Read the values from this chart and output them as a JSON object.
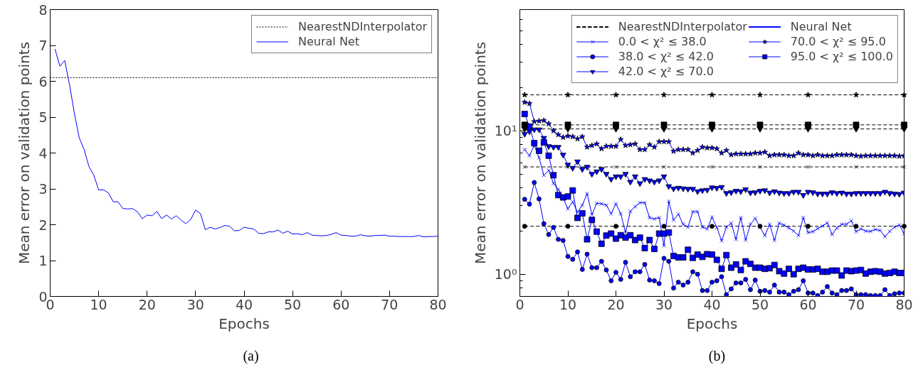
{
  "chart_data": [
    {
      "type": "line",
      "xlabel": "Epochs",
      "ylabel": "Mean error on validation points",
      "annotations": [
        "(a)"
      ],
      "x": [
        1,
        2,
        3,
        4,
        5,
        6,
        7,
        8,
        9,
        10,
        11,
        12,
        13,
        14,
        15,
        16,
        17,
        18,
        19,
        20,
        21,
        22,
        23,
        24,
        25,
        26,
        27,
        28,
        29,
        30,
        31,
        32,
        33,
        34,
        35,
        36,
        37,
        38,
        39,
        40,
        41,
        42,
        43,
        44,
        45,
        46,
        47,
        48,
        49,
        50,
        51,
        52,
        53,
        54,
        55,
        56,
        57,
        58,
        59,
        60,
        61,
        62,
        63,
        64,
        65,
        66,
        67,
        68,
        69,
        70,
        71,
        72,
        73,
        74,
        75,
        76,
        77,
        78,
        79,
        80
      ],
      "series": [
        {
          "name": "Neural Net",
          "color": "#0000ff",
          "line_style": "solid",
          "marker": "none",
          "values": [
            6.9,
            6.42,
            6.58,
            5.9,
            5.1,
            4.42,
            4.1,
            3.62,
            3.38,
            2.97,
            2.97,
            2.89,
            2.64,
            2.64,
            2.45,
            2.44,
            2.45,
            2.36,
            2.17,
            2.27,
            2.25,
            2.37,
            2.17,
            2.27,
            2.16,
            2.25,
            2.13,
            2.03,
            2.15,
            2.41,
            2.31,
            1.86,
            1.93,
            1.88,
            1.92,
            1.98,
            1.96,
            1.83,
            1.84,
            1.93,
            1.9,
            1.88,
            1.76,
            1.75,
            1.8,
            1.8,
            1.85,
            1.76,
            1.82,
            1.74,
            1.75,
            1.72,
            1.78,
            1.71,
            1.7,
            1.69,
            1.7,
            1.73,
            1.78,
            1.71,
            1.7,
            1.68,
            1.68,
            1.72,
            1.69,
            1.68,
            1.7,
            1.7,
            1.71,
            1.68,
            1.68,
            1.67,
            1.67,
            1.67,
            1.67,
            1.7,
            1.66,
            1.67,
            1.67,
            1.68
          ]
        }
      ],
      "ref_lines": [
        {
          "axis": "y",
          "value": 6.1,
          "label": "NearestNDInterpolator",
          "color": "#000000",
          "line_style": "dotted"
        }
      ],
      "xlim": [
        0,
        80
      ],
      "xticks": [
        0,
        10,
        20,
        30,
        40,
        50,
        60,
        70,
        80
      ],
      "ylim": [
        0,
        8
      ],
      "yticks": [
        0,
        1,
        2,
        3,
        4,
        5,
        6,
        7,
        8
      ],
      "grid": false,
      "legend": "top right"
    },
    {
      "type": "line",
      "xlabel": "Epochs",
      "ylabel": "Mean error on validation points",
      "annotations": [
        "(b)",
        "Neural Net"
      ],
      "log": true,
      "x": [
        1,
        2,
        3,
        4,
        5,
        6,
        7,
        8,
        9,
        10,
        11,
        12,
        13,
        14,
        15,
        16,
        17,
        18,
        19,
        20,
        21,
        22,
        23,
        24,
        25,
        26,
        27,
        28,
        29,
        30,
        31,
        32,
        33,
        34,
        35,
        36,
        37,
        38,
        39,
        40,
        41,
        42,
        43,
        44,
        45,
        46,
        47,
        48,
        49,
        50,
        51,
        52,
        53,
        54,
        55,
        56,
        57,
        58,
        59,
        60,
        61,
        62,
        63,
        64,
        65,
        66,
        67,
        68,
        69,
        70,
        71,
        72,
        73,
        74,
        75,
        76,
        77,
        78,
        79,
        80
      ],
      "series": [
        {
          "name": "NearestNDInterpolator",
          "color": "#000000",
          "line_style": "dashed",
          "marker": "star",
          "x": [
            1,
            10,
            20,
            30,
            40,
            50,
            60,
            70,
            80
          ],
          "values": [
            17.8,
            17.8,
            17.8,
            17.8,
            17.8,
            17.8,
            17.8,
            17.8,
            17.8
          ]
        },
        {
          "name": "NearestNDInterpolator",
          "color": "#000000",
          "line_style": "dashed",
          "marker": "square",
          "x": [
            1,
            10,
            20,
            30,
            40,
            50,
            60,
            70,
            80
          ],
          "values": [
            11.0,
            11.0,
            11.0,
            11.0,
            11.0,
            11.0,
            11.0,
            11.0,
            11.0
          ]
        },
        {
          "name": "NearestNDInterpolator",
          "color": "#000000",
          "line_style": "dashed",
          "marker": "triangle",
          "x": [
            1,
            10,
            20,
            30,
            40,
            50,
            60,
            70,
            80
          ],
          "values": [
            10.3,
            10.3,
            10.3,
            10.3,
            10.3,
            10.3,
            10.3,
            10.3,
            10.3
          ]
        },
        {
          "name": "NearestNDInterpolator",
          "color": "#000000",
          "line_style": "dashed",
          "marker": "cross",
          "x": [
            1,
            10,
            20,
            30,
            40,
            50,
            60,
            70,
            80
          ],
          "values": [
            5.6,
            5.6,
            5.6,
            5.6,
            5.6,
            5.6,
            5.6,
            5.6,
            5.6
          ]
        },
        {
          "name": "NearestNDInterpolator",
          "color": "#000000",
          "line_style": "dashed",
          "marker": "circle",
          "x": [
            1,
            10,
            20,
            30,
            40,
            50,
            60,
            70,
            80
          ],
          "values": [
            2.16,
            2.16,
            2.16,
            2.16,
            2.16,
            2.16,
            2.16,
            2.16,
            2.16
          ]
        },
        {
          "name": "0.0 < χ² ≤ 38.0",
          "color": "#0000ff",
          "line_style": "solid",
          "marker": "cross",
          "values": [
            7.4,
            6.7,
            7.9,
            6.5,
            4.9,
            5.3,
            4.3,
            3.9,
            3.4,
            2.86,
            3.2,
            2.7,
            3.03,
            3.65,
            2.6,
            3.12,
            3.1,
            3.03,
            2.64,
            3.1,
            2.64,
            1.95,
            2.74,
            2.96,
            3.15,
            3.15,
            2.48,
            2.43,
            2.48,
            1.58,
            3.22,
            2.39,
            2.62,
            2.23,
            2.13,
            2.73,
            2.73,
            2.13,
            2.07,
            2.5,
            2.12,
            1.71,
            2.13,
            2.27,
            1.75,
            2.48,
            1.73,
            2.23,
            2.45,
            2.12,
            1.86,
            2.23,
            1.72,
            2.27,
            2.2,
            2.1,
            2.0,
            1.86,
            2.48,
            1.95,
            1.98,
            2.08,
            2.17,
            2.28,
            1.89,
            2.1,
            2.23,
            2.23,
            2.36,
            1.98,
            2.07,
            2.0,
            1.99,
            2.05,
            2.02,
            1.83,
            1.99,
            2.13,
            2.2,
            1.92
          ]
        },
        {
          "name": "38.0 < χ² ≤ 42.0",
          "color": "#0000ff",
          "line_style": "solid",
          "marker": "circle",
          "values": [
            3.33,
            3.08,
            4.36,
            3.35,
            2.25,
            1.89,
            2.12,
            1.75,
            1.72,
            1.33,
            1.27,
            1.43,
            1.08,
            1.38,
            1.11,
            1.11,
            1.23,
            1.07,
            0.9,
            1.03,
            0.92,
            1.21,
            0.96,
            1.04,
            1.04,
            1.17,
            0.91,
            0.9,
            0.86,
            1.29,
            1.23,
            0.8,
            0.88,
            0.84,
            0.88,
            1.04,
            1.0,
            0.77,
            0.77,
            0.88,
            0.9,
            0.96,
            0.72,
            0.79,
            0.87,
            0.87,
            0.92,
            0.78,
            0.91,
            0.76,
            0.77,
            0.75,
            0.84,
            0.75,
            0.75,
            0.72,
            0.76,
            0.78,
            0.9,
            0.74,
            0.74,
            0.71,
            0.75,
            0.82,
            0.74,
            0.72,
            0.77,
            0.77,
            0.79,
            0.72,
            0.72,
            0.72,
            0.71,
            0.71,
            0.71,
            0.78,
            0.71,
            0.73,
            0.74,
            0.74
          ]
        },
        {
          "name": "42.0 < χ² ≤ 70.0",
          "color": "#0000ff",
          "line_style": "solid",
          "marker": "triangle",
          "values": [
            9.5,
            9.9,
            10.2,
            10.2,
            8.9,
            7.8,
            7.7,
            7.7,
            6.8,
            5.8,
            5.5,
            6.1,
            5.4,
            5.6,
            5.0,
            5.2,
            5.4,
            5.0,
            4.6,
            4.8,
            4.8,
            5.0,
            4.4,
            4.8,
            4.3,
            4.6,
            4.5,
            4.4,
            4.5,
            4.8,
            4.1,
            3.95,
            4.0,
            3.96,
            3.93,
            3.93,
            3.78,
            3.84,
            3.87,
            4.02,
            3.99,
            4.05,
            3.67,
            3.72,
            3.81,
            3.78,
            3.9,
            3.7,
            3.72,
            3.81,
            3.84,
            3.7,
            3.78,
            3.7,
            3.67,
            3.67,
            3.75,
            3.75,
            3.56,
            3.75,
            3.72,
            3.64,
            3.64,
            3.64,
            3.72,
            3.67,
            3.7,
            3.64,
            3.64,
            3.67,
            3.67,
            3.67,
            3.67,
            3.67,
            3.67,
            3.75,
            3.67,
            3.64,
            3.62,
            3.7
          ]
        },
        {
          "name": "70.0 < χ² ≤ 95.0",
          "color": "#0000ff",
          "line_style": "solid",
          "marker": "star",
          "values": [
            15.8,
            15.5,
            11.6,
            11.7,
            11.8,
            11.2,
            10.0,
            9.4,
            9.0,
            9.2,
            9.1,
            8.8,
            9.1,
            7.7,
            7.9,
            8.1,
            7.5,
            7.8,
            7.8,
            7.8,
            8.7,
            7.9,
            8.0,
            8.1,
            7.4,
            7.4,
            8.0,
            7.7,
            8.4,
            8.4,
            8.4,
            7.2,
            7.4,
            7.4,
            7.4,
            7.0,
            7.3,
            7.7,
            7.6,
            7.6,
            7.5,
            7.0,
            7.3,
            6.8,
            6.9,
            6.9,
            6.9,
            6.9,
            7.0,
            7.0,
            7.1,
            6.7,
            6.8,
            6.8,
            6.8,
            6.7,
            6.7,
            7.0,
            6.8,
            6.8,
            6.7,
            6.8,
            6.7,
            6.7,
            6.7,
            6.8,
            6.8,
            6.8,
            6.8,
            6.7,
            6.65,
            6.7,
            6.7,
            6.7,
            6.7,
            6.7,
            6.7,
            6.7,
            6.65,
            6.7
          ]
        },
        {
          "name": "95.0 < χ² ≤ 100.0",
          "color": "#0000ff",
          "line_style": "solid",
          "marker": "square",
          "values": [
            13.1,
            10.7,
            8.2,
            7.25,
            8.3,
            6.7,
            4.9,
            3.56,
            3.43,
            3.48,
            3.84,
            2.47,
            2.66,
            1.75,
            2.39,
            1.98,
            1.63,
            1.86,
            1.92,
            1.77,
            1.87,
            1.8,
            1.87,
            1.73,
            1.8,
            1.52,
            1.73,
            1.5,
            1.92,
            1.92,
            1.95,
            1.34,
            1.31,
            1.31,
            1.48,
            1.3,
            1.37,
            1.32,
            1.38,
            1.37,
            1.26,
            1.09,
            1.36,
            1.11,
            1.17,
            1.07,
            1.23,
            1.18,
            1.11,
            1.11,
            1.09,
            1.1,
            1.16,
            1.05,
            1.01,
            1.09,
            1.0,
            1.09,
            1.11,
            1.08,
            1.08,
            1.09,
            1.04,
            1.04,
            1.06,
            1.06,
            0.98,
            1.06,
            1.05,
            1.06,
            1.07,
            1.01,
            1.04,
            1.05,
            1.04,
            1.01,
            1.02,
            1.04,
            1.02,
            1.02
          ]
        }
      ],
      "xlim": [
        0,
        80
      ],
      "xticks": [
        0,
        10,
        20,
        30,
        40,
        50,
        60,
        70,
        80
      ],
      "ylim": [
        0.7,
        70
      ],
      "yticks": [
        {
          "value": 1,
          "label": "10⁰"
        },
        {
          "value": 10,
          "label": "10¹"
        }
      ],
      "grid": false,
      "legend": "top right"
    }
  ]
}
